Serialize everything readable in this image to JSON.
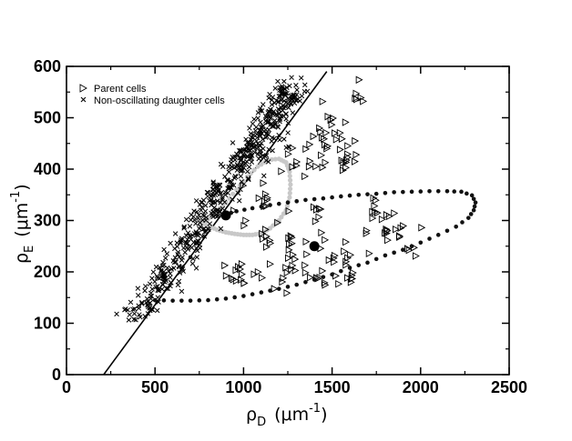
{
  "chart_data": {
    "type": "scatter",
    "xlabel_symbol": "ρ",
    "xlabel_sub": "D",
    "xlabel_unit": "(μm",
    "xlabel_exp": "-1",
    "xlabel_close": ")",
    "ylabel_symbol": "ρ",
    "ylabel_sub": "E",
    "ylabel_unit": "(μm",
    "ylabel_exp": "-1",
    "ylabel_close": ")",
    "xlim": [
      0,
      2500
    ],
    "ylim": [
      0,
      600
    ],
    "xticks": [
      "0",
      "500",
      "1000",
      "1500",
      "2000",
      "2500"
    ],
    "yticks": [
      "0",
      "100",
      "200",
      "300",
      "400",
      "500",
      "600"
    ],
    "grid": false,
    "legend_position": "top-left",
    "series": [
      {
        "name": "Parent cells",
        "marker": "open-triangle-right",
        "color": "#000000",
        "clusters": [
          {
            "cx": 1650,
            "cy": 525,
            "sx": 15,
            "sy": 25,
            "n": 6
          },
          {
            "cx": 1500,
            "cy": 490,
            "sx": 40,
            "sy": 25,
            "n": 10
          },
          {
            "cx": 1450,
            "cy": 440,
            "sx": 60,
            "sy": 25,
            "n": 14
          },
          {
            "cx": 1590,
            "cy": 425,
            "sx": 35,
            "sy": 20,
            "n": 14
          },
          {
            "cx": 1270,
            "cy": 420,
            "sx": 40,
            "sy": 25,
            "n": 8
          },
          {
            "cx": 1100,
            "cy": 345,
            "sx": 80,
            "sy": 30,
            "n": 14
          },
          {
            "cx": 1420,
            "cy": 305,
            "sx": 40,
            "sy": 25,
            "n": 8
          },
          {
            "cx": 1800,
            "cy": 315,
            "sx": 60,
            "sy": 20,
            "n": 14
          },
          {
            "cx": 1850,
            "cy": 275,
            "sx": 80,
            "sy": 20,
            "n": 16
          },
          {
            "cx": 1100,
            "cy": 255,
            "sx": 40,
            "sy": 15,
            "n": 8
          },
          {
            "cx": 1250,
            "cy": 245,
            "sx": 40,
            "sy": 25,
            "n": 10
          },
          {
            "cx": 1550,
            "cy": 220,
            "sx": 60,
            "sy": 20,
            "n": 14
          },
          {
            "cx": 1350,
            "cy": 210,
            "sx": 60,
            "sy": 20,
            "n": 10
          },
          {
            "cx": 980,
            "cy": 195,
            "sx": 60,
            "sy": 15,
            "n": 16
          },
          {
            "cx": 1420,
            "cy": 185,
            "sx": 50,
            "sy": 10,
            "n": 6
          },
          {
            "cx": 1620,
            "cy": 185,
            "sx": 30,
            "sy": 10,
            "n": 5
          },
          {
            "cx": 1240,
            "cy": 190,
            "sx": 30,
            "sy": 15,
            "n": 4
          }
        ]
      },
      {
        "name": "Non-oscillating daughter cells",
        "marker": "x",
        "color": "#000000",
        "band": {
          "x0": 380,
          "y0": 105,
          "x1": 1290,
          "y1": 560,
          "width": 45,
          "n": 520,
          "extra": [
            {
              "cx": 1200,
              "cy": 540,
              "sx": 40,
              "sy": 15,
              "n": 10
            },
            {
              "cx": 1140,
              "cy": 450,
              "sx": 40,
              "sy": 30,
              "n": 10
            },
            {
              "cx": 1240,
              "cy": 430,
              "sx": 20,
              "sy": 20,
              "n": 4
            }
          ]
        }
      }
    ],
    "trajectory_dark": [
      [
        500,
        145
      ],
      [
        600,
        144
      ],
      [
        700,
        144
      ],
      [
        800,
        145
      ],
      [
        900,
        148
      ],
      [
        1000,
        153
      ],
      [
        1100,
        160
      ],
      [
        1200,
        167
      ],
      [
        1300,
        175
      ],
      [
        1400,
        185
      ],
      [
        1500,
        195
      ],
      [
        1600,
        208
      ],
      [
        1700,
        218
      ],
      [
        1800,
        232
      ],
      [
        1900,
        243
      ],
      [
        2000,
        257
      ],
      [
        2100,
        272
      ],
      [
        2200,
        288
      ],
      [
        2270,
        305
      ],
      [
        2300,
        320
      ],
      [
        2310,
        335
      ],
      [
        2290,
        349
      ],
      [
        2230,
        356
      ],
      [
        2150,
        357
      ],
      [
        2050,
        357
      ],
      [
        1950,
        356
      ],
      [
        1850,
        355
      ],
      [
        1750,
        352
      ],
      [
        1650,
        350
      ],
      [
        1550,
        347
      ],
      [
        1450,
        343
      ],
      [
        1350,
        340
      ],
      [
        1250,
        335
      ],
      [
        1150,
        330
      ],
      [
        1050,
        324
      ],
      [
        960,
        318
      ],
      [
        900,
        312
      ]
    ],
    "trajectory_light": [
      [
        750,
        300
      ],
      [
        800,
        290
      ],
      [
        850,
        282
      ],
      [
        900,
        277
      ],
      [
        950,
        274
      ],
      [
        1000,
        272
      ],
      [
        1050,
        272
      ],
      [
        1100,
        275
      ],
      [
        1150,
        285
      ],
      [
        1200,
        300
      ],
      [
        1240,
        320
      ],
      [
        1260,
        345
      ],
      [
        1265,
        370
      ],
      [
        1260,
        395
      ],
      [
        1240,
        413
      ],
      [
        1200,
        420
      ],
      [
        1140,
        418
      ],
      [
        1080,
        405
      ],
      [
        1020,
        385
      ],
      [
        960,
        360
      ],
      [
        900,
        335
      ],
      [
        850,
        318
      ],
      [
        800,
        303
      ],
      [
        760,
        293
      ]
    ],
    "large_dots": [
      {
        "x": 900,
        "y": 310
      },
      {
        "x": 1400,
        "y": 250
      }
    ],
    "fit_line": {
      "x": [
        210,
        1470
      ],
      "y": [
        0,
        590
      ]
    }
  }
}
